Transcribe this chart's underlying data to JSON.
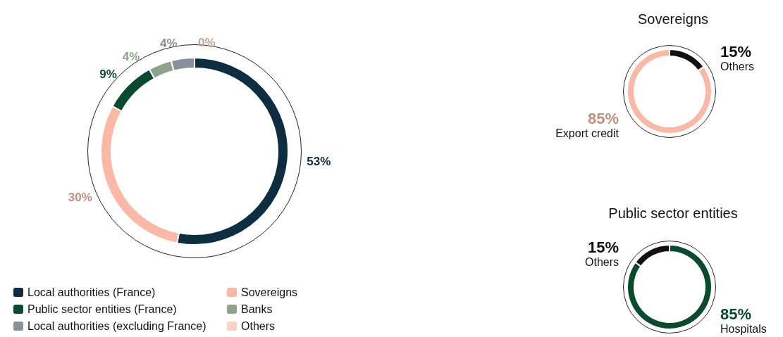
{
  "chart_data": [
    {
      "type": "donut",
      "categories": [
        "Local authorities (France)",
        "Sovereigns",
        "Public sector entities (France)",
        "Banks",
        "Local authorities (excluding France)",
        "Others"
      ],
      "values": [
        53,
        30,
        9,
        4,
        4,
        0
      ],
      "colors": [
        "#0d2d40",
        "#f9b9a6",
        "#0a4a2e",
        "#8fa38c",
        "#8a8f9c",
        "#fbd3c4"
      ],
      "value_labels": [
        "53%",
        "30%",
        "9%",
        "4%",
        "4%",
        "0%"
      ],
      "legend": "bottom left"
    },
    {
      "type": "donut",
      "title": "Sovereigns",
      "categories": [
        "Others",
        "Export credit"
      ],
      "values": [
        15,
        85
      ],
      "colors": [
        "#111111",
        "#f9b9a6"
      ],
      "value_labels": [
        "15%",
        "85%"
      ]
    },
    {
      "type": "donut",
      "title": "Public sector entities",
      "categories": [
        "Hospitals",
        "Others"
      ],
      "values": [
        85,
        15
      ],
      "colors": [
        "#0a4a2e",
        "#111111"
      ],
      "value_labels": [
        "85%",
        "15%"
      ]
    }
  ]
}
